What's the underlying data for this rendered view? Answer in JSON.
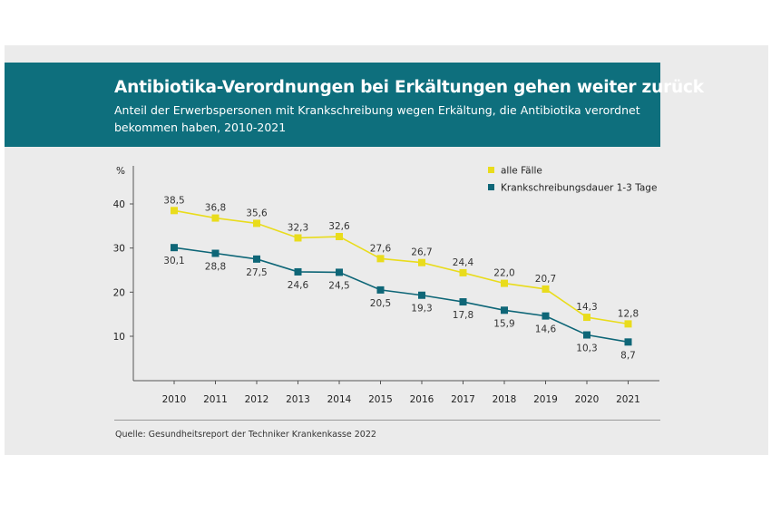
{
  "header": {
    "title": "Antibiotika-Verordnungen bei Erkältungen gehen weiter zurück",
    "subtitle": "Anteil der Erwerbspersonen mit Krankschreibung wegen Erkältung, die Antibiotika verordnet bekommen haben, 2010-2021"
  },
  "source": "Quelle: Gesundheitsreport der Techniker Krankenkasse 2022",
  "chart_data": {
    "type": "line",
    "title": "Antibiotika-Verordnungen bei Erkältungen gehen weiter zurück",
    "subtitle": "Anteil der Erwerbspersonen mit Krankschreibung wegen Erkältung, die Antibiotika verordnet bekommen haben, 2010-2021",
    "ylabel": "%",
    "xlabel": "",
    "x": [
      "2010",
      "2011",
      "2012",
      "2013",
      "2014",
      "2015",
      "2016",
      "2017",
      "2018",
      "2019",
      "2020",
      "2021"
    ],
    "yticks": [
      "10",
      "20",
      "30",
      "40"
    ],
    "ylim": [
      0,
      45
    ],
    "grid": false,
    "legend_position": "top-right",
    "series": [
      {
        "name": "alle Fälle",
        "color": "#e9dc1c",
        "values": [
          38.5,
          36.8,
          35.6,
          32.3,
          32.6,
          27.6,
          26.7,
          24.4,
          22.0,
          20.7,
          14.3,
          12.8
        ],
        "labels": [
          "38,5",
          "36,8",
          "35,6",
          "32,3",
          "32,6",
          "27,6",
          "26,7",
          "24,4",
          "22,0",
          "20,7",
          "14,3",
          "12,8"
        ],
        "label_position": "above"
      },
      {
        "name": "Krankschreibungsdauer 1-3 Tage",
        "color": "#0e6677",
        "values": [
          30.1,
          28.8,
          27.5,
          24.6,
          24.5,
          20.5,
          19.3,
          17.8,
          15.9,
          14.6,
          10.3,
          8.7
        ],
        "labels": [
          "30,1",
          "28,8",
          "27,5",
          "24,6",
          "24,5",
          "20,5",
          "19,3",
          "17,8",
          "15,9",
          "14,6",
          "10,3",
          "8,7"
        ],
        "label_position": "below"
      }
    ]
  }
}
